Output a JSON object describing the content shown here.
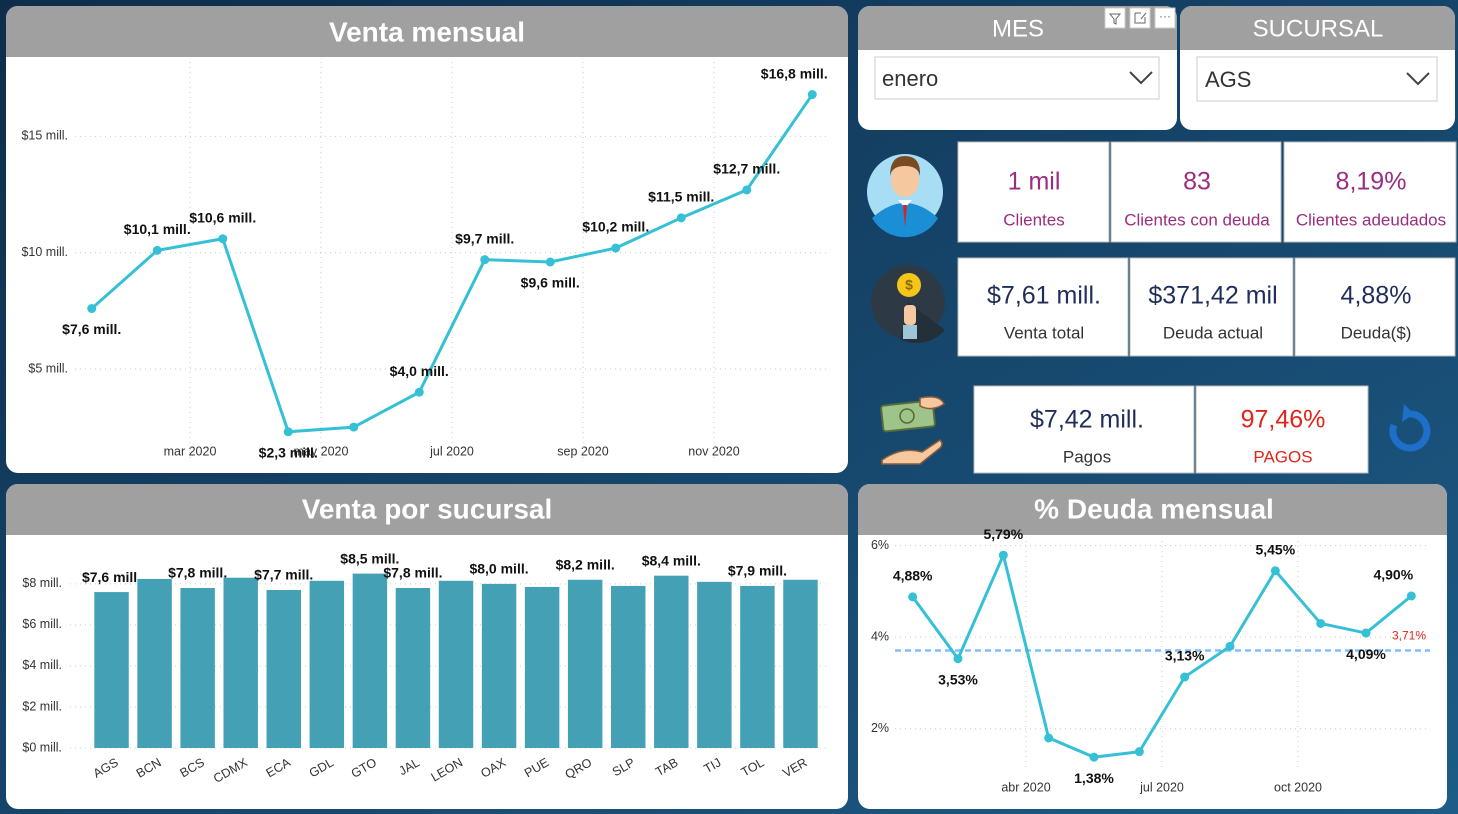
{
  "chart_data": [
    {
      "type": "line",
      "title": "Venta mensual",
      "color": "#35c0d6",
      "grid": true,
      "x": [
        "2020-01",
        "2020-02",
        "2020-03",
        "2020-04",
        "2020-05",
        "2020-06",
        "2020-07",
        "2020-08",
        "2020-09",
        "2020-10",
        "2020-11",
        "2020-12"
      ],
      "values": [
        7.6,
        10.1,
        10.6,
        2.3,
        2.5,
        4.0,
        9.7,
        9.6,
        10.2,
        11.5,
        12.7,
        16.8
      ],
      "value_labels": [
        "$7,6 mill.",
        "$10,1 mill.",
        "$10,6 mill.",
        "$2,3 mill.",
        null,
        "$4,0 mill.",
        "$9,7 mill.",
        "$9,6 mill.",
        "$10,2 mill.",
        "$11,5 mill.",
        "$12,7 mill.",
        "$16,8 mill."
      ],
      "xticks": [
        {
          "value": "2020-03",
          "label": "mar 2020"
        },
        {
          "value": "2020-05",
          "label": "may 2020"
        },
        {
          "value": "2020-07",
          "label": "jul 2020"
        },
        {
          "value": "2020-09",
          "label": "sep 2020"
        },
        {
          "value": "2020-11",
          "label": "nov 2020"
        }
      ],
      "ylim": [
        1,
        18.2
      ],
      "yticks": [
        {
          "value": 5,
          "label": "$5 mill."
        },
        {
          "value": 10,
          "label": "$10 mill."
        },
        {
          "value": 15,
          "label": "$15 mill."
        }
      ]
    },
    {
      "type": "bar",
      "title": "Venta por sucursal",
      "color": "#44a0b5",
      "grid": true,
      "categories": [
        "AGS",
        "BCN",
        "BCS",
        "CDMX",
        "ECA",
        "GDL",
        "GTO",
        "JAL",
        "LEON",
        "OAX",
        "PUE",
        "QRO",
        "SLP",
        "TAB",
        "TIJ",
        "TOL",
        "VER"
      ],
      "values": [
        7.6,
        8.24,
        7.8,
        8.3,
        7.7,
        8.15,
        8.5,
        7.8,
        8.15,
        8.0,
        7.85,
        8.2,
        7.9,
        8.4,
        8.1,
        7.9,
        8.2
      ],
      "value_labels": [
        "$7,6 mill.",
        null,
        "$7,8 mill.",
        null,
        "$7,7 mill.",
        null,
        "$8,5 mill.",
        "$7,8 mill.",
        null,
        "$8,0 mill.",
        null,
        "$8,2 mill.",
        null,
        "$8,4 mill.",
        null,
        "$7,9 mill.",
        null
      ],
      "ylim": [
        0,
        9.7
      ],
      "yticks": [
        {
          "value": 0,
          "label": "$0 mill."
        },
        {
          "value": 2,
          "label": "$2 mill."
        },
        {
          "value": 4,
          "label": "$4 mill."
        },
        {
          "value": 6,
          "label": "$6 mill."
        },
        {
          "value": 8,
          "label": "$8 mill."
        }
      ]
    },
    {
      "type": "line",
      "title": "% Deuda mensual",
      "color": "#35c0d6",
      "grid": true,
      "x": [
        "2020-01",
        "2020-02",
        "2020-03",
        "2020-04",
        "2020-05",
        "2020-06",
        "2020-07",
        "2020-08",
        "2020-09",
        "2020-10",
        "2020-11",
        "2020-12"
      ],
      "values": [
        4.88,
        3.53,
        5.79,
        1.8,
        1.38,
        1.5,
        3.13,
        3.8,
        5.45,
        4.3,
        4.09,
        4.9
      ],
      "value_labels": [
        "4,88%",
        "3,53%",
        "5,79%",
        null,
        "1,38%",
        null,
        "3,13%",
        null,
        "5,45%",
        null,
        "4,09%",
        "4,90%"
      ],
      "xticks": [
        {
          "value": "2020-04",
          "label": "abr 2020"
        },
        {
          "value": "2020-07",
          "label": "jul 2020"
        },
        {
          "value": "2020-10",
          "label": "oct 2020"
        }
      ],
      "ylim": [
        1.1,
        6.1
      ],
      "yticks": [
        {
          "value": 2,
          "label": "2%"
        },
        {
          "value": 4,
          "label": "4%"
        },
        {
          "value": 6,
          "label": "6%"
        }
      ],
      "reference_line": {
        "value": 3.71,
        "label": "3,71%",
        "color": "#7fbfff"
      }
    }
  ],
  "filters": [
    {
      "title": "MES",
      "selected": "enero"
    },
    {
      "title": "SUCURSAL",
      "selected": "AGS"
    }
  ],
  "kpis": {
    "clientes": [
      {
        "value": "1 mil",
        "label": "Clientes"
      },
      {
        "value": "83",
        "label": "Clientes con deuda"
      },
      {
        "value": "8,19%",
        "label": "Clientes adeudados"
      }
    ],
    "ventas": [
      {
        "value": "$7,61 mill.",
        "label": "Venta total"
      },
      {
        "value": "$371,42 mil",
        "label": "Deuda actual"
      },
      {
        "value": "4,88%",
        "label": "Deuda($)"
      }
    ],
    "pagos": [
      {
        "value": "$7,42 mill.",
        "label": "Pagos"
      },
      {
        "value": "97,46%",
        "label": "PAGOS"
      }
    ]
  }
}
